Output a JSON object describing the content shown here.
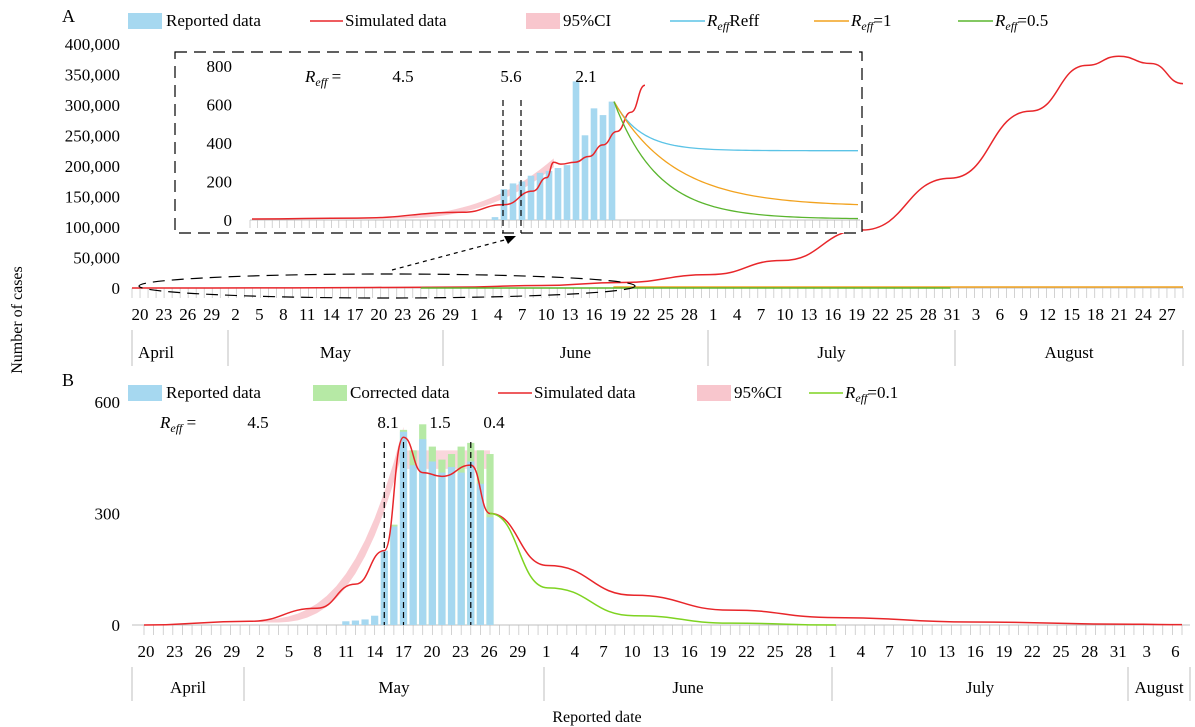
{
  "figure": {
    "y_axis_title": "Number of cases",
    "x_axis_title": "Reported date",
    "colors": {
      "reported": "#a6d8f0",
      "corrected": "#b6e9a5",
      "simulated": "#e8262a",
      "ci": "#f8c6cd",
      "reff1": "#5bc3e6",
      "reff05": "#f2a21e",
      "reff01": "#5ab52e",
      "reff01_b": "#7ed321"
    }
  },
  "chart_data": [
    {
      "panel": "A",
      "type": "bar",
      "xlabel": "",
      "ylabel": "Number of cases",
      "ylim": [
        0,
        400000
      ],
      "yticks": [
        "0",
        "50,000",
        "100,000",
        "150,000",
        "200,000",
        "250,000",
        "300,000",
        "350,000",
        "400,000"
      ],
      "x_tick_labels": [
        "20",
        "23",
        "26",
        "29",
        "2",
        "5",
        "8",
        "11",
        "14",
        "17",
        "20",
        "23",
        "26",
        "29",
        "1",
        "4",
        "7",
        "10",
        "13",
        "16",
        "19",
        "22",
        "25",
        "28",
        "1",
        "4",
        "7",
        "10",
        "13",
        "16",
        "19",
        "22",
        "25",
        "28",
        "31",
        "3",
        "6",
        "9",
        "12",
        "15",
        "18",
        "21",
        "24",
        "27"
      ],
      "months": [
        "April",
        "May",
        "June",
        "July",
        "August"
      ],
      "legend": [
        "Reported data",
        "Simulated data",
        "95%CI",
        "R_eff =1",
        "R_eff =0.5",
        "R_eff =0.1"
      ],
      "legend_html": [
        "Reported data",
        "Simulated data",
        "95%CI",
        "Reff",
        "=1",
        "=0.5",
        "=0.1"
      ],
      "simulated": {
        "dates": [
          "Apr 20",
          "May 10",
          "May 30",
          "Jun 10",
          "Jun 20",
          "Jul 1",
          "Jul 10",
          "Jul 20",
          "Jul 31",
          "Aug 10",
          "Aug 17",
          "Aug 21",
          "Aug 25",
          "Aug 29"
        ],
        "values": [
          0,
          200,
          1500,
          4000,
          9000,
          22000,
          45000,
          95000,
          180000,
          290000,
          365000,
          380000,
          368000,
          335000
        ]
      },
      "inset": {
        "ylim": [
          0,
          800
        ],
        "yticks": [
          "0",
          "200",
          "400",
          "600",
          "800"
        ],
        "reff_label": "R",
        "reff_sub": "eff",
        "reff_eq": " =",
        "reff_values": [
          "4.5",
          "5.6",
          "2.1"
        ],
        "reported": [
          15,
          160,
          190,
          200,
          230,
          245,
          255,
          270,
          285,
          720,
          440,
          580,
          545,
          615
        ],
        "simulated_x": [
          0,
          30,
          60,
          72,
          80,
          84,
          86,
          88,
          92,
          96,
          100,
          104,
          108,
          112
        ],
        "simulated_y": [
          5,
          10,
          40,
          80,
          150,
          220,
          300,
          290,
          300,
          330,
          390,
          460,
          560,
          700
        ],
        "reff1_end": 360,
        "reff05_end": 70,
        "reff01_end": 5
      }
    },
    {
      "panel": "B",
      "type": "bar",
      "xlabel": "Reported date",
      "ylabel": "Number of cases",
      "ylim": [
        0,
        600
      ],
      "yticks": [
        "0",
        "300",
        "600"
      ],
      "x_tick_labels": [
        "20",
        "23",
        "26",
        "29",
        "2",
        "5",
        "8",
        "11",
        "14",
        "17",
        "20",
        "23",
        "26",
        "29",
        "1",
        "4",
        "7",
        "10",
        "13",
        "16",
        "19",
        "22",
        "25",
        "28",
        "1",
        "4",
        "7",
        "10",
        "13",
        "16",
        "19",
        "22",
        "25",
        "28",
        "31",
        "3",
        "6"
      ],
      "months": [
        "April",
        "May",
        "June",
        "July",
        "August"
      ],
      "legend": [
        "Reported data",
        "Corrected data",
        "Simulated data",
        "95%CI",
        "R_eff=0.1"
      ],
      "legend_html": [
        "Reported data",
        "Corrected data",
        "Simulated data",
        "95%CI",
        "Reff",
        "=0.1"
      ],
      "reff_label": "R",
      "reff_sub": "eff",
      "reff_eq": " =",
      "reff_values": [
        "4.5",
        "8.1",
        "1.5",
        "0.4"
      ],
      "reported": {
        "days": [
          "May 11",
          "May 12",
          "May 13",
          "May 14",
          "May 15",
          "May 16",
          "May 17",
          "May 18",
          "May 19",
          "May 20",
          "May 21",
          "May 22",
          "May 23",
          "May 24",
          "May 25",
          "May 26"
        ],
        "values": [
          10,
          12,
          15,
          25,
          200,
          265,
          520,
          430,
          500,
          440,
          410,
          425,
          410,
          440,
          380,
          290
        ]
      },
      "corrected": {
        "days": [
          "May 16",
          "May 17",
          "May 18",
          "May 19",
          "May 20",
          "May 21",
          "May 22",
          "May 23",
          "May 24",
          "May 25",
          "May 26"
        ],
        "values": [
          270,
          525,
          470,
          540,
          480,
          445,
          460,
          480,
          490,
          470,
          460
        ]
      },
      "simulated": {
        "days": [
          "Apr 20",
          "May 1",
          "May 8",
          "May 12",
          "May 15",
          "May 17",
          "May 19",
          "May 21",
          "May 24",
          "May 26",
          "Jun 1",
          "Jun 10",
          "Jun 20",
          "Jul 1",
          "Jul 15",
          "Aug 1",
          "Aug 6"
        ],
        "values": [
          0,
          10,
          45,
          110,
          200,
          505,
          410,
          400,
          430,
          300,
          160,
          80,
          40,
          20,
          8,
          2,
          1
        ]
      },
      "reff01": {
        "days": [
          "May 26",
          "Jun 1",
          "Jun 10",
          "Jun 20",
          "Jul 1"
        ],
        "values": [
          300,
          100,
          25,
          5,
          0
        ]
      }
    }
  ]
}
